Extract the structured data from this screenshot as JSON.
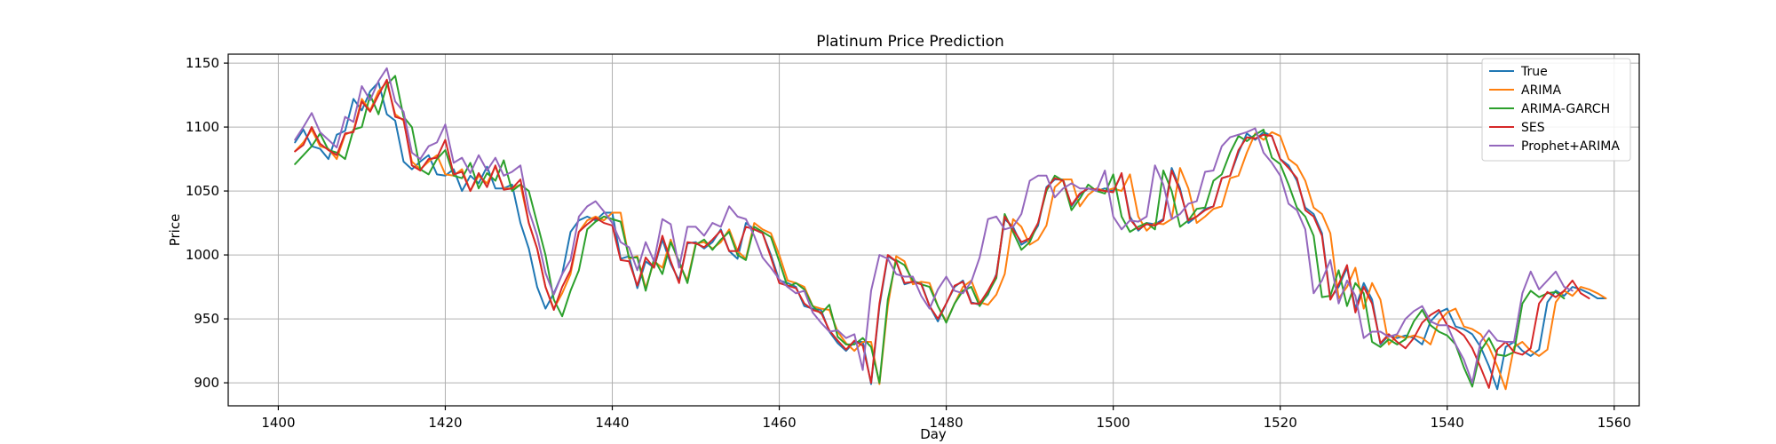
{
  "chart_data": {
    "type": "line",
    "title": "Platinum Price Prediction",
    "xlabel": "Day",
    "ylabel": "Price",
    "xlim": [
      1394,
      1563
    ],
    "ylim": [
      882,
      1157
    ],
    "xticks": [
      1400,
      1420,
      1440,
      1460,
      1480,
      1500,
      1520,
      1540,
      1560
    ],
    "yticks": [
      900,
      950,
      1000,
      1050,
      1100,
      1150
    ],
    "grid": true,
    "legend_position": "top-right",
    "x_start": 1402,
    "series": [
      {
        "name": "True",
        "color": "#1f77b4",
        "values": [
          1088,
          1098,
          1085,
          1083,
          1075,
          1094,
          1097,
          1122,
          1113,
          1128,
          1135,
          1110,
          1105,
          1073,
          1067,
          1073,
          1078,
          1063,
          1062,
          1067,
          1050,
          1062,
          1056,
          1069,
          1052,
          1052,
          1055,
          1025,
          1005,
          975,
          958,
          970,
          985,
          1018,
          1027,
          1030,
          1027,
          1033,
          1033,
          997,
          999,
          974,
          995,
          990,
          1012,
          993,
          980,
          1009,
          1010,
          1005,
          1010,
          1020,
          1003,
          997,
          1025,
          1020,
          1017,
          1000,
          980,
          978,
          975,
          960,
          958,
          957,
          940,
          931,
          925,
          932,
          932,
          899,
          960,
          999,
          995,
          977,
          979,
          978,
          960,
          948,
          962,
          975,
          980,
          963,
          961,
          969,
          985,
          1028,
          1022,
          1008,
          1012,
          1023,
          1053,
          1059,
          1059,
          1038,
          1047,
          1052,
          1050,
          1052,
          1050,
          1063,
          1030,
          1019,
          1025,
          1024,
          1028,
          1068,
          1052,
          1025,
          1030,
          1036,
          1038,
          1060,
          1062,
          1080,
          1095,
          1090,
          1096,
          1093,
          1075,
          1070,
          1058,
          1037,
          1032,
          1017,
          966,
          975,
          990,
          958,
          978,
          965,
          930,
          937,
          935,
          937,
          935,
          930,
          948,
          955,
          958,
          944,
          942,
          938,
          928,
          913,
          895,
          928,
          932,
          925,
          921,
          926,
          963,
          972,
          968,
          975,
          973,
          970,
          966,
          966
        ]
      },
      {
        "name": "ARIMA",
        "color": "#ff7f0e",
        "values": [
          1081,
          1088,
          1098,
          1085,
          1083,
          1075,
          1094,
          1097,
          1122,
          1113,
          1128,
          1135,
          1110,
          1105,
          1073,
          1067,
          1073,
          1078,
          1063,
          1062,
          1067,
          1050,
          1062,
          1056,
          1069,
          1052,
          1052,
          1055,
          1025,
          1005,
          975,
          958,
          970,
          985,
          1018,
          1027,
          1030,
          1027,
          1033,
          1033,
          997,
          999,
          974,
          995,
          990,
          1012,
          993,
          980,
          1009,
          1010,
          1005,
          1010,
          1020,
          1003,
          997,
          1025,
          1020,
          1017,
          1000,
          980,
          978,
          975,
          960,
          958,
          957,
          940,
          931,
          925,
          932,
          932,
          899,
          960,
          999,
          995,
          977,
          979,
          978,
          960,
          948,
          962,
          975,
          980,
          963,
          961,
          969,
          985,
          1028,
          1022,
          1008,
          1012,
          1023,
          1053,
          1059,
          1059,
          1038,
          1047,
          1052,
          1050,
          1052,
          1050,
          1063,
          1030,
          1019,
          1025,
          1024,
          1028,
          1068,
          1052,
          1025,
          1030,
          1036,
          1038,
          1060,
          1062,
          1080,
          1095,
          1090,
          1096,
          1093,
          1075,
          1070,
          1058,
          1037,
          1032,
          1017,
          966,
          975,
          990,
          958,
          978,
          965,
          930,
          937,
          935,
          937,
          935,
          930,
          948,
          955,
          958,
          944,
          942,
          938,
          928,
          913,
          895,
          928,
          932,
          925,
          921,
          926,
          963,
          972,
          968,
          975,
          973,
          970,
          966
        ]
      },
      {
        "name": "ARIMA-GARCH",
        "color": "#2ca02c",
        "values": [
          1071,
          1078,
          1085,
          1095,
          1082,
          1080,
          1075,
          1098,
          1100,
          1125,
          1110,
          1133,
          1140,
          1108,
          1100,
          1067,
          1063,
          1075,
          1082,
          1062,
          1060,
          1072,
          1052,
          1064,
          1058,
          1074,
          1050,
          1055,
          1050,
          1025,
          1000,
          965,
          952,
          972,
          988,
          1020,
          1026,
          1030,
          1028,
          1026,
          998,
          998,
          972,
          997,
          985,
          1010,
          995,
          978,
          1008,
          1012,
          1004,
          1012,
          1018,
          1000,
          996,
          1022,
          1018,
          1014,
          995,
          975,
          978,
          973,
          960,
          954,
          961,
          936,
          930,
          930,
          935,
          928,
          900,
          965,
          996,
          992,
          980,
          977,
          975,
          960,
          947,
          962,
          972,
          975,
          960,
          970,
          982,
          1032,
          1018,
          1004,
          1010,
          1025,
          1050,
          1062,
          1058,
          1035,
          1044,
          1055,
          1050,
          1048,
          1063,
          1030,
          1018,
          1022,
          1025,
          1020,
          1066,
          1050,
          1022,
          1027,
          1036,
          1037,
          1058,
          1063,
          1080,
          1093,
          1089,
          1094,
          1098,
          1076,
          1071,
          1055,
          1037,
          1030,
          1015,
          967,
          968,
          988,
          960,
          978,
          970,
          932,
          928,
          934,
          930,
          934,
          948,
          957,
          945,
          940,
          937,
          930,
          912,
          897,
          925,
          935,
          922,
          921,
          924,
          962,
          972,
          967,
          970,
          971,
          966
        ]
      },
      {
        "name": "SES",
        "color": "#d62728",
        "values": [
          1081,
          1086,
          1100,
          1087,
          1082,
          1078,
          1095,
          1096,
          1120,
          1112,
          1125,
          1137,
          1108,
          1106,
          1070,
          1066,
          1075,
          1076,
          1090,
          1063,
          1065,
          1050,
          1064,
          1053,
          1070,
          1051,
          1052,
          1059,
          1025,
          1005,
          975,
          957,
          975,
          988,
          1018,
          1024,
          1029,
          1025,
          1023,
          996,
          995,
          976,
          998,
          990,
          1015,
          995,
          978,
          1010,
          1009,
          1006,
          1012,
          1019,
          1003,
          1003,
          1022,
          1020,
          1017,
          998,
          978,
          976,
          974,
          962,
          957,
          955,
          941,
          933,
          926,
          933,
          929,
          900,
          962,
          1000,
          995,
          978,
          979,
          977,
          960,
          950,
          962,
          976,
          979,
          962,
          962,
          972,
          984,
          1030,
          1020,
          1010,
          1013,
          1025,
          1052,
          1060,
          1058,
          1039,
          1048,
          1052,
          1051,
          1050,
          1049,
          1064,
          1028,
          1020,
          1024,
          1023,
          1027,
          1066,
          1050,
          1027,
          1030,
          1035,
          1038,
          1060,
          1062,
          1082,
          1092,
          1091,
          1094,
          1093,
          1075,
          1068,
          1060,
          1035,
          1030,
          1015,
          965,
          977,
          992,
          955,
          975,
          962,
          931,
          938,
          932,
          927,
          935,
          947,
          953,
          957,
          945,
          942,
          937,
          927,
          912,
          896,
          926,
          932,
          924,
          922,
          927,
          962,
          971,
          967,
          972,
          980,
          970,
          966
        ]
      },
      {
        "name": "Prophet+ARIMA",
        "color": "#9467bd",
        "values": [
          1090,
          1100,
          1111,
          1096,
          1090,
          1084,
          1108,
          1104,
          1132,
          1121,
          1136,
          1146,
          1120,
          1112,
          1080,
          1075,
          1085,
          1088,
          1102,
          1072,
          1076,
          1064,
          1078,
          1066,
          1076,
          1062,
          1065,
          1070,
          1035,
          1015,
          986,
          969,
          985,
          996,
          1030,
          1038,
          1042,
          1034,
          1025,
          1010,
          1006,
          988,
          1010,
          995,
          1028,
          1024,
          990,
          1022,
          1022,
          1015,
          1025,
          1022,
          1038,
          1030,
          1028,
          1015,
          998,
          990,
          981,
          975,
          970,
          972,
          955,
          947,
          940,
          941,
          935,
          938,
          910,
          972,
          1000,
          997,
          985,
          983,
          983,
          968,
          958,
          973,
          983,
          972,
          970,
          979,
          998,
          1028,
          1030,
          1020,
          1022,
          1032,
          1058,
          1062,
          1062,
          1045,
          1052,
          1056,
          1052,
          1052,
          1050,
          1066,
          1030,
          1020,
          1027,
          1026,
          1030,
          1070,
          1055,
          1028,
          1032,
          1040,
          1042,
          1065,
          1066,
          1085,
          1092,
          1094,
          1096,
          1099,
          1080,
          1072,
          1062,
          1040,
          1035,
          1020,
          970,
          980,
          996,
          962,
          980,
          968,
          935,
          940,
          940,
          936,
          938,
          950,
          956,
          960,
          948,
          945,
          945,
          930,
          918,
          900,
          932,
          941,
          933,
          932,
          932,
          970,
          987,
          973,
          980,
          987,
          975,
          972
        ]
      }
    ]
  }
}
